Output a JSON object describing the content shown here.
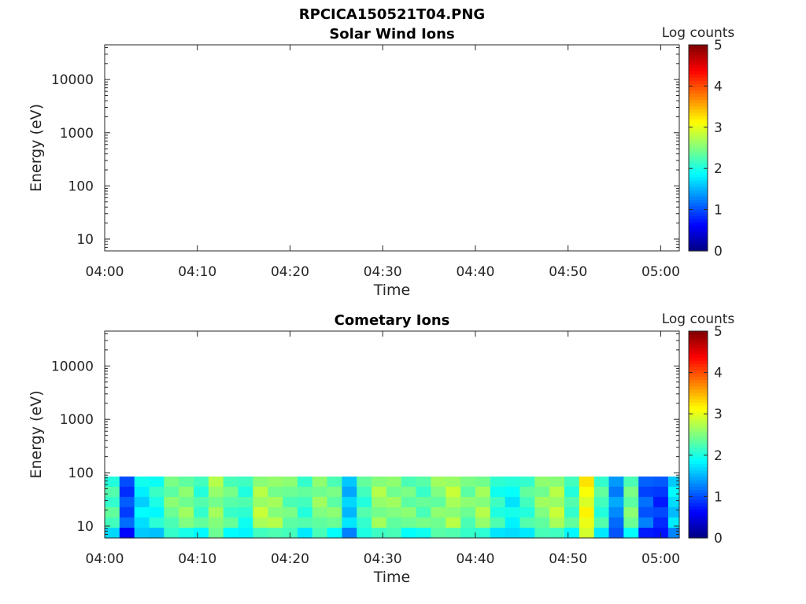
{
  "figure_title": "RPCICA150521T04.PNG",
  "chart_data": [
    {
      "type": "heatmap",
      "title": "Solar Wind Ions",
      "xlabel": "Time",
      "ylabel": "Energy (eV)",
      "x_tick_labels": [
        "04:00",
        "04:10",
        "04:20",
        "04:30",
        "04:40",
        "04:50",
        "05:00"
      ],
      "x_range_minutes": [
        0,
        62
      ],
      "y_scale": "log",
      "y_tick_labels": [
        "10",
        "100",
        "1000",
        "10000"
      ],
      "y_range": [
        6,
        45000
      ],
      "colorbar": {
        "label": "Log counts",
        "ticks": [
          "0",
          "1",
          "2",
          "3",
          "4",
          "5"
        ],
        "range": [
          0,
          5
        ],
        "colormap": "jet"
      },
      "data_present": false
    },
    {
      "type": "heatmap",
      "title": "Cometary Ions",
      "xlabel": "Time",
      "ylabel": "Energy (eV)",
      "x_tick_labels": [
        "04:00",
        "04:10",
        "04:20",
        "04:30",
        "04:40",
        "04:50",
        "05:00"
      ],
      "x_range_minutes": [
        0,
        62
      ],
      "y_scale": "log",
      "y_tick_labels": [
        "10",
        "100",
        "1000",
        "10000"
      ],
      "y_range": [
        6,
        45000
      ],
      "y_data_range": [
        6,
        85
      ],
      "colorbar": {
        "label": "Log counts",
        "ticks": [
          "0",
          "1",
          "2",
          "3",
          "4",
          "5"
        ],
        "range": [
          0,
          5
        ],
        "colormap": "jet"
      },
      "data_present": true,
      "time_bin_minutes": 1.6,
      "column_log_counts": [
        2.2,
        1.0,
        1.8,
        2.0,
        2.4,
        2.5,
        2.2,
        2.6,
        2.3,
        2.1,
        2.7,
        2.6,
        2.4,
        2.2,
        2.5,
        2.4,
        1.6,
        2.2,
        2.6,
        2.5,
        2.4,
        2.3,
        2.5,
        2.7,
        2.4,
        2.6,
        2.1,
        1.9,
        2.2,
        2.5,
        2.7,
        2.2,
        3.1,
        2.2,
        1.3,
        2.4,
        1.1,
        0.9,
        1.7,
        2.1,
        1.8,
        1.6,
        1.8,
        1.5,
        2.0,
        1.9,
        1.6,
        2.1,
        1.8,
        2.0,
        1.7,
        2.3,
        1.8,
        2.0
      ]
    }
  ]
}
